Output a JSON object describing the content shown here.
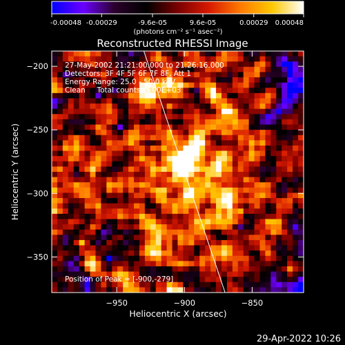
{
  "colorbar": {
    "tick_labels": [
      "-0.00048",
      "-0.00029",
      "-9.6e-05",
      "9.6e-05",
      "0.00029",
      "0.00048"
    ],
    "tick_values": [
      -0.00048,
      -0.00029,
      -9.6e-05,
      9.6e-05,
      0.00029,
      0.00048
    ],
    "range": [
      -0.00048,
      0.00048
    ],
    "units_label": "(photons cm⁻² s⁻¹ asec⁻²)",
    "stops": [
      "#0000ff",
      "#6a00ff",
      "#2a002a",
      "#000000",
      "#7a0000",
      "#d81a00",
      "#ff7a00",
      "#ffc800",
      "#ffffff"
    ]
  },
  "chart_data": {
    "type": "heatmap",
    "title": "Reconstructed RHESSI Image",
    "xlabel": "Heliocentric X (arcsec)",
    "ylabel": "Heliocentric Y (arcsec)",
    "xlim": [
      -998,
      -812
    ],
    "ylim": [
      -378,
      -188
    ],
    "xticks": [
      -950,
      -900,
      -850
    ],
    "yticks": [
      -200,
      -250,
      -300,
      -350
    ],
    "xtick_labels": [
      "−950",
      "−900",
      "−850"
    ],
    "ytick_labels": [
      "−200",
      "−250",
      "−300",
      "−350"
    ],
    "peak": {
      "x": -900,
      "y": -279
    },
    "limb_line": [
      [
        -930,
        -188
      ],
      [
        -870,
        -378
      ]
    ],
    "annotations": [
      "27-May-2002 21:21:00.000 to 21:26:16.000",
      "Detectors: 3F 4F 5F 6F 7F 8F, Att 1",
      "Energy Range: 25.0 - 50.0 keV",
      "Clean     Total counts: 5.00E+03"
    ],
    "peak_label": "Position of Peak = [-900,-279]"
  },
  "footer": {
    "timestamp": "29-Apr-2022 10:26"
  }
}
